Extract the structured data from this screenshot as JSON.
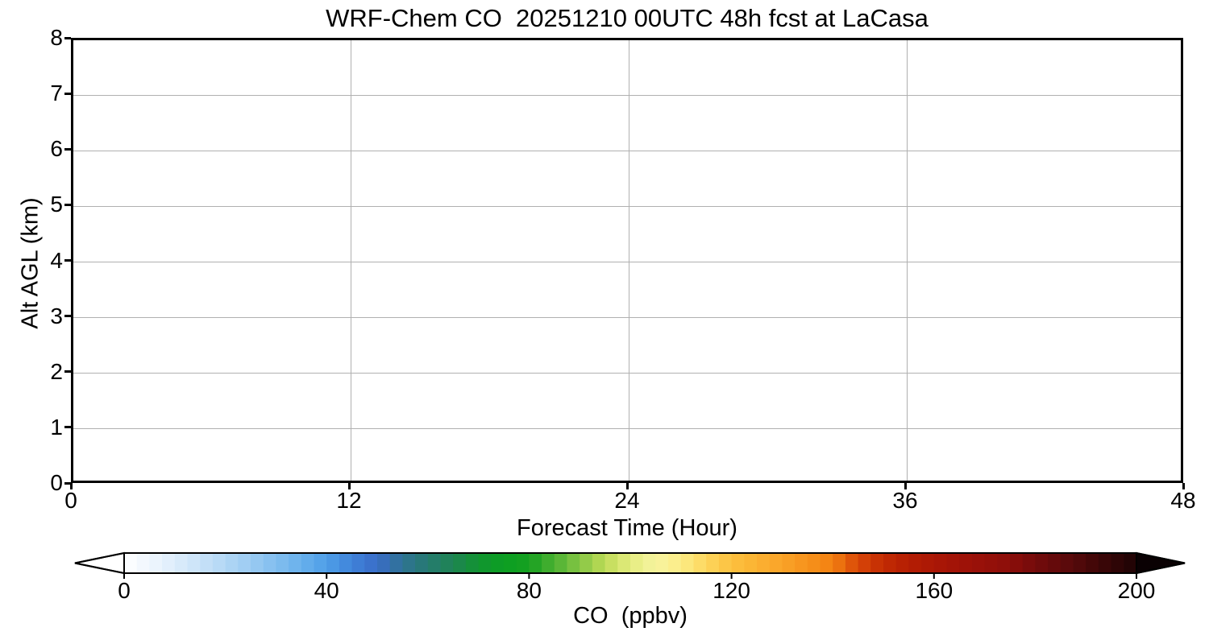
{
  "title": "WRF-Chem CO  20251210 00UTC 48h fcst at LaCasa",
  "plot": {
    "x_axis": {
      "label": "Forecast Time (Hour)",
      "tick_labels": [
        "0",
        "12",
        "24",
        "36",
        "48"
      ],
      "tick_values": [
        0,
        12,
        24,
        36,
        48
      ],
      "range": [
        0,
        48
      ]
    },
    "y_axis": {
      "label": "Alt AGL (km)",
      "tick_labels": [
        "0",
        "1",
        "2",
        "3",
        "4",
        "5",
        "6",
        "7",
        "8"
      ],
      "tick_values": [
        0,
        1,
        2,
        3,
        4,
        5,
        6,
        7,
        8
      ],
      "range": [
        0,
        8
      ]
    },
    "grid_color": "#b0b0b0"
  },
  "colorbar": {
    "label": "CO  (ppbv)",
    "tick_labels": [
      "0",
      "40",
      "80",
      "120",
      "160",
      "200"
    ],
    "tick_values": [
      0,
      40,
      80,
      120,
      160,
      200
    ],
    "range": [
      0,
      200
    ],
    "extend": "both",
    "under_color": "#ffffff",
    "over_color": "#0a0103",
    "band_step": 2.5,
    "stops": [
      [
        0,
        "#ffffff"
      ],
      [
        5,
        "#eff6fd"
      ],
      [
        10,
        "#ddedfb"
      ],
      [
        15,
        "#c9e2f8"
      ],
      [
        20,
        "#b2d7f5"
      ],
      [
        25,
        "#9bcbf2"
      ],
      [
        30,
        "#82beef"
      ],
      [
        35,
        "#68b0ec"
      ],
      [
        40,
        "#4f9fe8"
      ],
      [
        45,
        "#3f83d9"
      ],
      [
        50,
        "#3a6cc8"
      ],
      [
        55,
        "#2f7394"
      ],
      [
        60,
        "#267a70"
      ],
      [
        65,
        "#1e8452"
      ],
      [
        70,
        "#129430"
      ],
      [
        75,
        "#0b9f22"
      ],
      [
        80,
        "#16a021"
      ],
      [
        85,
        "#4cb132"
      ],
      [
        90,
        "#85c644"
      ],
      [
        95,
        "#bedb57"
      ],
      [
        100,
        "#e4ec7f"
      ],
      [
        105,
        "#f6f4a0"
      ],
      [
        110,
        "#fcec86"
      ],
      [
        115,
        "#fdd75e"
      ],
      [
        120,
        "#fcc03f"
      ],
      [
        125,
        "#fbb232"
      ],
      [
        130,
        "#f9a328"
      ],
      [
        135,
        "#f6921c"
      ],
      [
        140,
        "#f38011"
      ],
      [
        145,
        "#d84708"
      ],
      [
        150,
        "#c22b03"
      ],
      [
        155,
        "#b41d03"
      ],
      [
        160,
        "#ab1705"
      ],
      [
        165,
        "#a01307"
      ],
      [
        170,
        "#961009"
      ],
      [
        175,
        "#8c0e0a"
      ],
      [
        180,
        "#740b0b"
      ],
      [
        185,
        "#600a0b"
      ],
      [
        190,
        "#4a0809"
      ],
      [
        195,
        "#330506"
      ],
      [
        200,
        "#1d0304"
      ]
    ]
  },
  "chart_data": {
    "type": "heatmap",
    "title": "WRF-Chem CO  20251210 00UTC 48h fcst at LaCasa",
    "xlabel": "Forecast Time (Hour)",
    "ylabel": "Alt AGL (km)",
    "xlim": [
      0,
      48
    ],
    "ylim": [
      0,
      8
    ],
    "x_ticks": [
      0,
      12,
      24,
      36,
      48
    ],
    "y_ticks": [
      0,
      1,
      2,
      3,
      4,
      5,
      6,
      7,
      8
    ],
    "grid": true,
    "values": [],
    "note": "plot area is blank white - no CO field is drawn",
    "colorbar": {
      "label": "CO  (ppbv)",
      "range": [
        0,
        200
      ],
      "ticks": [
        0,
        40,
        80,
        120,
        160,
        200
      ],
      "extend": "both",
      "orientation": "horizontal"
    }
  }
}
